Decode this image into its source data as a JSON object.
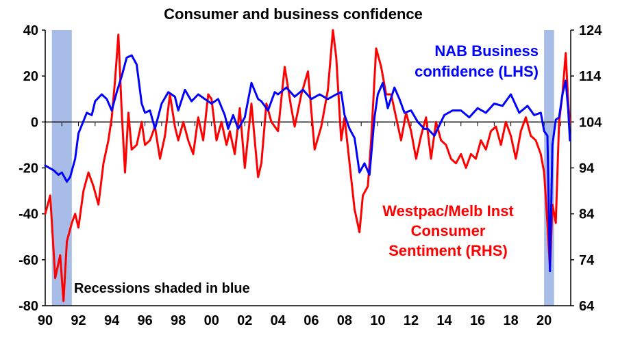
{
  "chart_data": {
    "type": "line",
    "title": "Consumer and business confidence",
    "note": "Recessions shaded in blue",
    "x_tick_labels": [
      "90",
      "92",
      "94",
      "96",
      "98",
      "00",
      "02",
      "04",
      "06",
      "08",
      "10",
      "12",
      "14",
      "16",
      "18",
      "20"
    ],
    "xlim": [
      1990,
      2021.6
    ],
    "left_axis": {
      "ylim": [
        -80,
        40
      ],
      "ticks": [
        40,
        20,
        0,
        -20,
        -40,
        -60,
        -80
      ]
    },
    "right_axis": {
      "ylim": [
        64,
        124
      ],
      "ticks": [
        124,
        114,
        104,
        94,
        84,
        74,
        64
      ]
    },
    "recessions": [
      {
        "start": 1990.4,
        "end": 1991.6
      },
      {
        "start": 2020.0,
        "end": 2020.6
      }
    ],
    "series": [
      {
        "name": "NAB Business confidence (LHS)",
        "label_lines": [
          "NAB Business",
          "confidence (LHS)"
        ],
        "axis": "left",
        "color": "#0000ff",
        "x": [
          1990.0,
          1990.5,
          1990.8,
          1991.0,
          1991.3,
          1991.5,
          1991.8,
          1992.0,
          1992.5,
          1992.8,
          1993.0,
          1993.4,
          1993.7,
          1994.0,
          1994.3,
          1994.6,
          1994.9,
          1995.2,
          1995.5,
          1995.8,
          1996.0,
          1996.3,
          1996.6,
          1997.0,
          1997.4,
          1997.8,
          1998.0,
          1998.4,
          1998.8,
          1999.2,
          1999.6,
          2000.0,
          2000.4,
          2000.8,
          2001.0,
          2001.3,
          2001.6,
          2002.0,
          2002.4,
          2002.8,
          2003.0,
          2003.4,
          2003.8,
          2004.0,
          2004.5,
          2005.0,
          2005.5,
          2006.0,
          2006.5,
          2007.0,
          2007.5,
          2007.8,
          2008.0,
          2008.3,
          2008.6,
          2008.9,
          2009.2,
          2009.5,
          2009.8,
          2010.0,
          2010.3,
          2010.6,
          2011.0,
          2011.3,
          2011.6,
          2012.0,
          2012.4,
          2012.8,
          2013.0,
          2013.4,
          2013.8,
          2014.0,
          2014.5,
          2015.0,
          2015.5,
          2016.0,
          2016.5,
          2017.0,
          2017.5,
          2018.0,
          2018.5,
          2019.0,
          2019.4,
          2019.8,
          2020.0,
          2020.2,
          2020.35,
          2020.5,
          2020.7,
          2020.9,
          2021.1,
          2021.3,
          2021.45,
          2021.55
        ],
        "y": [
          -19,
          -21,
          -23,
          -22,
          -26,
          -24,
          -16,
          -5,
          4,
          3,
          9,
          12,
          10,
          5,
          13,
          20,
          28,
          29,
          25,
          8,
          4,
          5,
          -3,
          8,
          13,
          11,
          5,
          14,
          9,
          12,
          10,
          8,
          10,
          3,
          -3,
          3,
          -3,
          2,
          17,
          10,
          9,
          5,
          13,
          12,
          15,
          11,
          14,
          10,
          12,
          10,
          12,
          13,
          3,
          -3,
          -7,
          -22,
          -18,
          -23,
          2,
          12,
          17,
          6,
          15,
          10,
          4,
          5,
          0,
          -3,
          -3,
          -6,
          0,
          3,
          5,
          5,
          2,
          6,
          4,
          8,
          7,
          12,
          4,
          7,
          3,
          4,
          -4,
          -6,
          -65,
          -10,
          1,
          2,
          12,
          18,
          5,
          -8
        ]
      },
      {
        "name": "Westpac/Melb Inst Consumer Sentiment (RHS)",
        "label_lines": [
          "Westpac/Melb Inst",
          "Consumer",
          "Sentiment (RHS)"
        ],
        "axis": "right",
        "color": "#ff0000",
        "x": [
          1990.0,
          1990.3,
          1990.6,
          1990.9,
          1991.1,
          1991.3,
          1991.6,
          1991.8,
          1992.0,
          1992.3,
          1992.6,
          1992.9,
          1993.2,
          1993.5,
          1993.8,
          1994.0,
          1994.2,
          1994.4,
          1994.6,
          1994.8,
          1995.0,
          1995.2,
          1995.5,
          1995.8,
          1996.0,
          1996.3,
          1996.6,
          1996.9,
          1997.2,
          1997.5,
          1997.8,
          1998.0,
          1998.3,
          1998.6,
          1998.9,
          1999.2,
          1999.5,
          1999.8,
          2000.0,
          2000.3,
          2000.6,
          2000.9,
          2001.1,
          2001.4,
          2001.7,
          2002.0,
          2002.4,
          2002.8,
          2003.0,
          2003.3,
          2003.6,
          2004.0,
          2004.4,
          2004.8,
          2005.0,
          2005.4,
          2005.8,
          2006.2,
          2006.6,
          2007.0,
          2007.3,
          2007.5,
          2007.8,
          2008.0,
          2008.3,
          2008.6,
          2008.9,
          2009.1,
          2009.4,
          2009.6,
          2009.9,
          2010.2,
          2010.5,
          2010.8,
          2011.1,
          2011.4,
          2011.7,
          2012.0,
          2012.3,
          2012.6,
          2012.9,
          2013.2,
          2013.5,
          2013.8,
          2014.1,
          2014.4,
          2014.7,
          2015.0,
          2015.3,
          2015.6,
          2015.9,
          2016.2,
          2016.5,
          2016.8,
          2017.1,
          2017.4,
          2017.7,
          2018.0,
          2018.3,
          2018.6,
          2018.9,
          2019.2,
          2019.5,
          2019.8,
          2020.0,
          2020.2,
          2020.35,
          2020.5,
          2020.7,
          2020.9,
          2021.1,
          2021.3,
          2021.45,
          2021.55
        ],
        "y": [
          84,
          88,
          70,
          75,
          65,
          78,
          82,
          84,
          81,
          89,
          93,
          90,
          86,
          95,
          100,
          105,
          113,
          123,
          106,
          93,
          106,
          98,
          99,
          104,
          99,
          100,
          103,
          96,
          101,
          110,
          103,
          100,
          104,
          100,
          97,
          105,
          100,
          110,
          109,
          100,
          104,
          99,
          102,
          97,
          107,
          94,
          108,
          92,
          95,
          108,
          104,
          102,
          116,
          107,
          103,
          110,
          115,
          98,
          103,
          111,
          124,
          118,
          100,
          105,
          95,
          85,
          80,
          88,
          90,
          100,
          120,
          116,
          110,
          110,
          105,
          100,
          106,
          102,
          96,
          101,
          105,
          96,
          104,
          100,
          99,
          96,
          95,
          97,
          94,
          97,
          96,
          100,
          98,
          102,
          103,
          99,
          104,
          101,
          96,
          102,
          105,
          101,
          100,
          97,
          93,
          82,
          72,
          86,
          82,
          104,
          110,
          119,
          108,
          104
        ]
      }
    ]
  }
}
